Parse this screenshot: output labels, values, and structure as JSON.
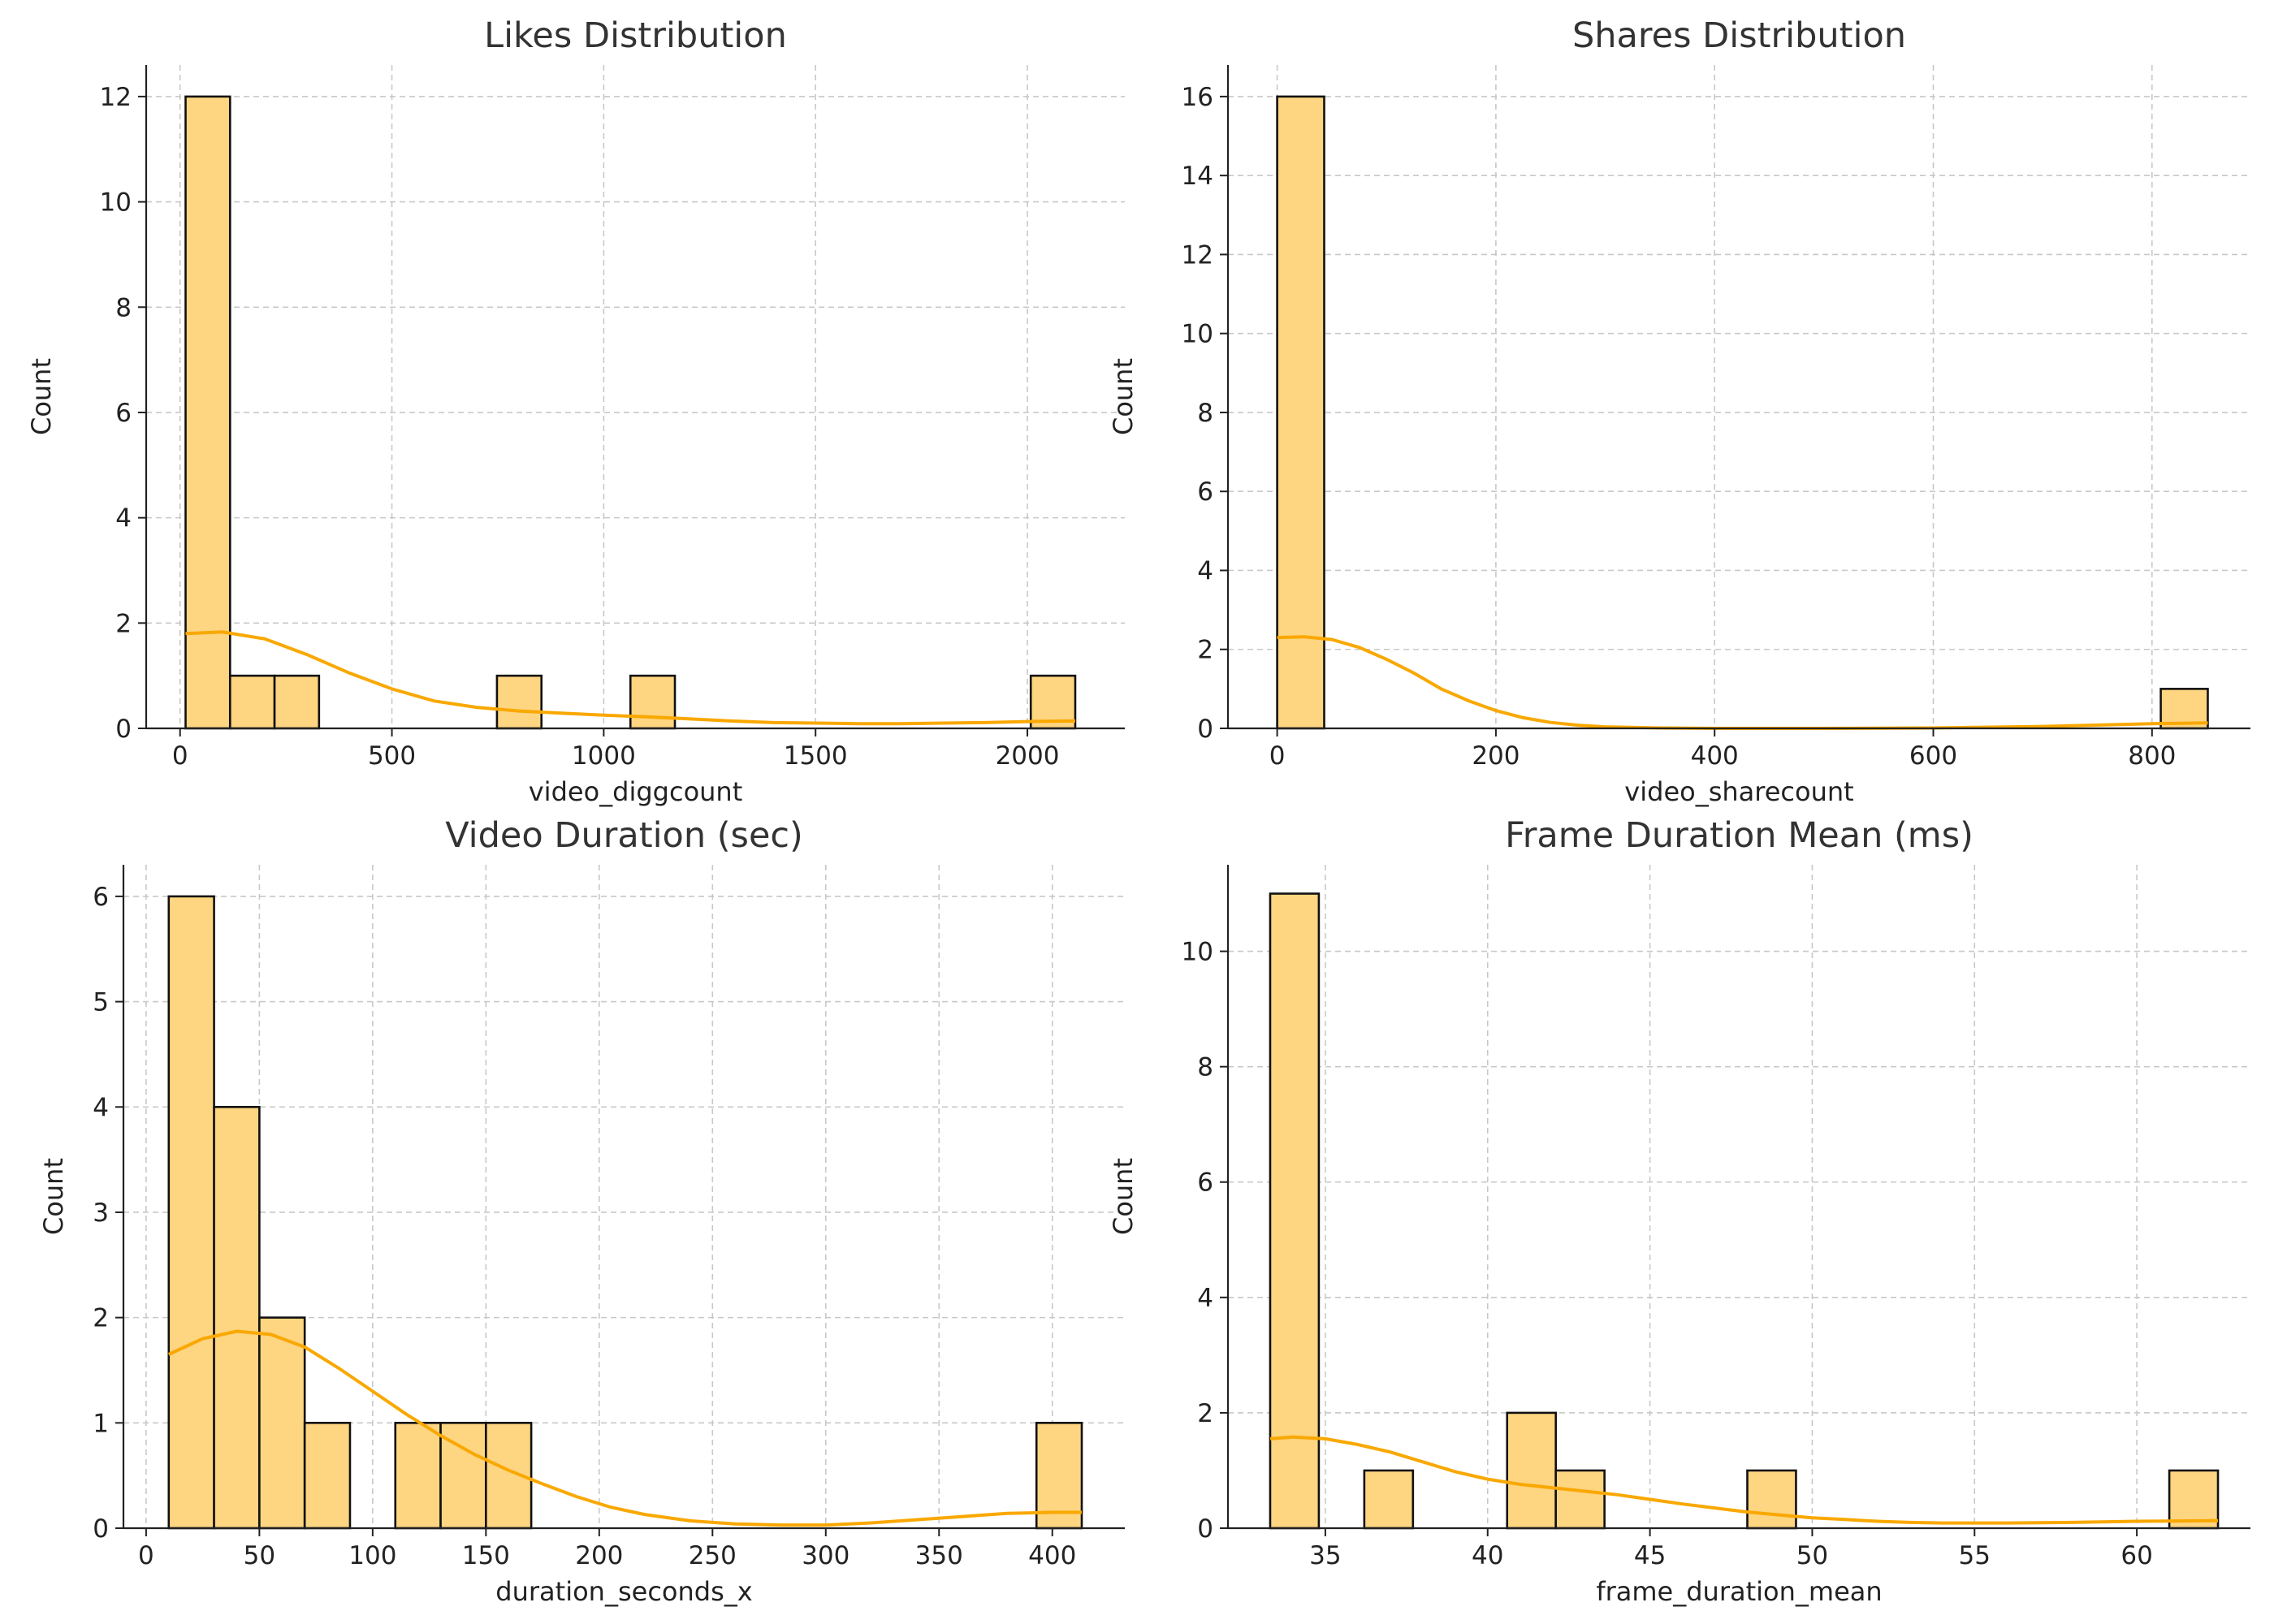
{
  "colors": {
    "bar_fill": "#fed580",
    "kde_line": "#f9a800"
  },
  "chart_data": [
    {
      "type": "bar",
      "title": "Likes Distribution",
      "xlabel": "video_diggcount",
      "ylabel": "Count",
      "xlim": [
        -80,
        2230
      ],
      "ylim": [
        0,
        12.6
      ],
      "xticks": [
        0,
        500,
        1000,
        1500,
        2000
      ],
      "yticks": [
        0,
        2,
        4,
        6,
        8,
        10,
        12
      ],
      "grid": true,
      "bins": [
        {
          "x0": 13,
          "x1": 118,
          "count": 12
        },
        {
          "x0": 118,
          "x1": 223,
          "count": 1
        },
        {
          "x0": 223,
          "x1": 328,
          "count": 1
        },
        {
          "x0": 748,
          "x1": 853,
          "count": 1
        },
        {
          "x0": 1063,
          "x1": 1168,
          "count": 1
        },
        {
          "x0": 2008,
          "x1": 2113,
          "count": 1
        }
      ],
      "kde": [
        [
          13,
          1.8
        ],
        [
          100,
          1.83
        ],
        [
          200,
          1.7
        ],
        [
          300,
          1.4
        ],
        [
          400,
          1.05
        ],
        [
          500,
          0.75
        ],
        [
          600,
          0.52
        ],
        [
          700,
          0.4
        ],
        [
          800,
          0.33
        ],
        [
          900,
          0.29
        ],
        [
          1000,
          0.25
        ],
        [
          1100,
          0.22
        ],
        [
          1200,
          0.18
        ],
        [
          1300,
          0.14
        ],
        [
          1400,
          0.11
        ],
        [
          1500,
          0.1
        ],
        [
          1600,
          0.09
        ],
        [
          1700,
          0.09
        ],
        [
          1800,
          0.1
        ],
        [
          1900,
          0.11
        ],
        [
          2000,
          0.13
        ],
        [
          2113,
          0.14
        ]
      ]
    },
    {
      "type": "bar",
      "title": "Shares Distribution",
      "xlabel": "video_sharecount",
      "ylabel": "Count",
      "xlim": [
        -45,
        890
      ],
      "ylim": [
        0,
        16.8
      ],
      "xticks": [
        0,
        200,
        400,
        600,
        800
      ],
      "yticks": [
        0,
        2,
        4,
        6,
        8,
        10,
        12,
        14,
        16
      ],
      "grid": true,
      "bins": [
        {
          "x0": 0,
          "x1": 43,
          "count": 16
        },
        {
          "x0": 808,
          "x1": 851,
          "count": 1
        }
      ],
      "kde": [
        [
          0,
          2.3
        ],
        [
          25,
          2.32
        ],
        [
          50,
          2.25
        ],
        [
          75,
          2.05
        ],
        [
          100,
          1.75
        ],
        [
          125,
          1.4
        ],
        [
          150,
          1.0
        ],
        [
          175,
          0.7
        ],
        [
          200,
          0.45
        ],
        [
          225,
          0.27
        ],
        [
          250,
          0.15
        ],
        [
          275,
          0.08
        ],
        [
          300,
          0.04
        ],
        [
          350,
          0.01
        ],
        [
          400,
          0.0
        ],
        [
          500,
          0.0
        ],
        [
          600,
          0.01
        ],
        [
          700,
          0.05
        ],
        [
          760,
          0.09
        ],
        [
          800,
          0.12
        ],
        [
          851,
          0.14
        ]
      ]
    },
    {
      "type": "bar",
      "title": "Video Duration (sec)",
      "xlabel": "duration_seconds_x",
      "ylabel": "Count",
      "xlim": [
        -10,
        432
      ],
      "ylim": [
        0,
        6.3
      ],
      "xticks": [
        0,
        50,
        100,
        150,
        200,
        250,
        300,
        350,
        400
      ],
      "yticks": [
        0,
        1,
        2,
        3,
        4,
        5,
        6
      ],
      "grid": true,
      "bins": [
        {
          "x0": 10,
          "x1": 30,
          "count": 6
        },
        {
          "x0": 30,
          "x1": 50,
          "count": 4
        },
        {
          "x0": 50,
          "x1": 70,
          "count": 2
        },
        {
          "x0": 70,
          "x1": 90,
          "count": 1
        },
        {
          "x0": 110,
          "x1": 130,
          "count": 1
        },
        {
          "x0": 130,
          "x1": 150,
          "count": 1
        },
        {
          "x0": 150,
          "x1": 170,
          "count": 1
        },
        {
          "x0": 393,
          "x1": 413,
          "count": 1
        }
      ],
      "kde": [
        [
          10,
          1.65
        ],
        [
          25,
          1.8
        ],
        [
          40,
          1.87
        ],
        [
          55,
          1.84
        ],
        [
          70,
          1.72
        ],
        [
          85,
          1.52
        ],
        [
          100,
          1.3
        ],
        [
          115,
          1.08
        ],
        [
          130,
          0.88
        ],
        [
          145,
          0.7
        ],
        [
          160,
          0.55
        ],
        [
          175,
          0.42
        ],
        [
          190,
          0.3
        ],
        [
          205,
          0.2
        ],
        [
          220,
          0.13
        ],
        [
          240,
          0.07
        ],
        [
          260,
          0.04
        ],
        [
          280,
          0.03
        ],
        [
          300,
          0.03
        ],
        [
          320,
          0.05
        ],
        [
          340,
          0.08
        ],
        [
          360,
          0.11
        ],
        [
          380,
          0.14
        ],
        [
          400,
          0.15
        ],
        [
          413,
          0.15
        ]
      ]
    },
    {
      "type": "bar",
      "title": "Frame Duration Mean (ms)",
      "xlabel": "frame_duration_mean",
      "ylabel": "Count",
      "xlim": [
        32,
        63.5
      ],
      "ylim": [
        0,
        11.5
      ],
      "xticks": [
        35,
        40,
        45,
        50,
        55,
        60
      ],
      "yticks": [
        0,
        2,
        4,
        6,
        8,
        10
      ],
      "grid": true,
      "bins": [
        {
          "x0": 33.3,
          "x1": 34.8,
          "count": 11
        },
        {
          "x0": 36.2,
          "x1": 37.7,
          "count": 1
        },
        {
          "x0": 40.6,
          "x1": 42.1,
          "count": 2
        },
        {
          "x0": 42.1,
          "x1": 43.6,
          "count": 1
        },
        {
          "x0": 48.0,
          "x1": 49.5,
          "count": 1
        },
        {
          "x0": 61.0,
          "x1": 62.5,
          "count": 1
        }
      ],
      "kde": [
        [
          33.3,
          1.55
        ],
        [
          34,
          1.58
        ],
        [
          35,
          1.55
        ],
        [
          36,
          1.45
        ],
        [
          37,
          1.32
        ],
        [
          38,
          1.15
        ],
        [
          39,
          0.98
        ],
        [
          40,
          0.85
        ],
        [
          41,
          0.76
        ],
        [
          42,
          0.7
        ],
        [
          43,
          0.64
        ],
        [
          44,
          0.58
        ],
        [
          45,
          0.5
        ],
        [
          46,
          0.42
        ],
        [
          47,
          0.35
        ],
        [
          48,
          0.28
        ],
        [
          49,
          0.23
        ],
        [
          50,
          0.18
        ],
        [
          51,
          0.15
        ],
        [
          52,
          0.12
        ],
        [
          53,
          0.1
        ],
        [
          54,
          0.09
        ],
        [
          56,
          0.09
        ],
        [
          58,
          0.1
        ],
        [
          60,
          0.12
        ],
        [
          62.5,
          0.13
        ]
      ]
    }
  ]
}
